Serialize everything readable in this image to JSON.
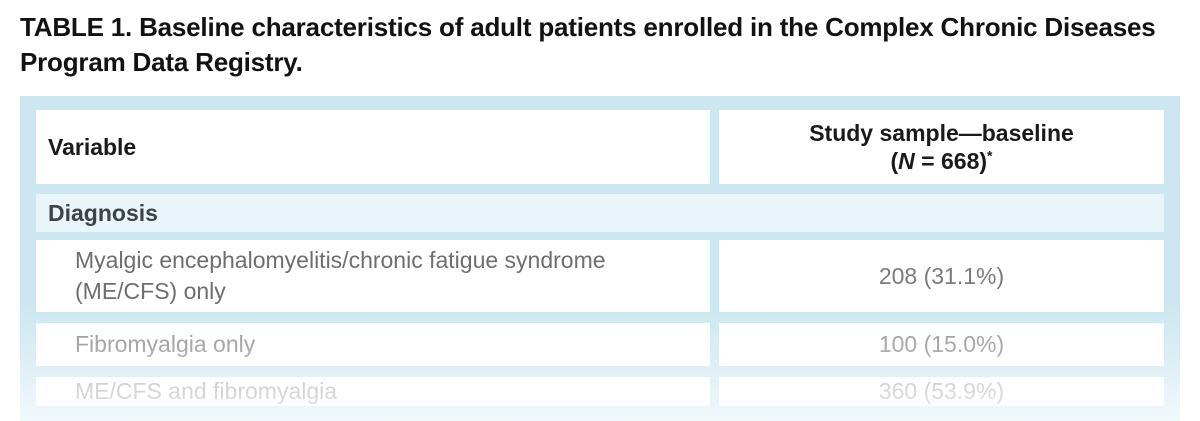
{
  "page": {
    "title_label": "TABLE 1.",
    "title_text": " Baseline characteristics of adult patients enrolled in the Complex Chronic Diseases Program Data Registry."
  },
  "table": {
    "header": {
      "variable_col": "Variable",
      "sample_col_line1": "Study sample—baseline",
      "sample_col_paren_open": "(",
      "sample_col_n": "N",
      "sample_col_n_rest": " = 668)",
      "sample_col_footnote": "*"
    },
    "section": {
      "label": "Diagnosis"
    },
    "rows": [
      {
        "variable": "Myalgic encephalomyelitis/chronic fatigue syndrome (ME/CFS) only",
        "value": "208 (31.1%)"
      },
      {
        "variable": "Fibromyalgia only",
        "value": "100 (15.0%)"
      },
      {
        "variable": "ME/CFS and fibromyalgia",
        "value": "360 (53.9%)"
      }
    ]
  },
  "colors": {
    "frame_blue": "#cde7f0",
    "section_row_blue": "#e9f5f9",
    "title_text": "#121212",
    "header_text": "#1a1a1a",
    "section_text": "#3d4347",
    "row1_text": "#6e6e6e",
    "row2_text": "#8c8c8c",
    "row3_text": "#a8a8a8"
  }
}
